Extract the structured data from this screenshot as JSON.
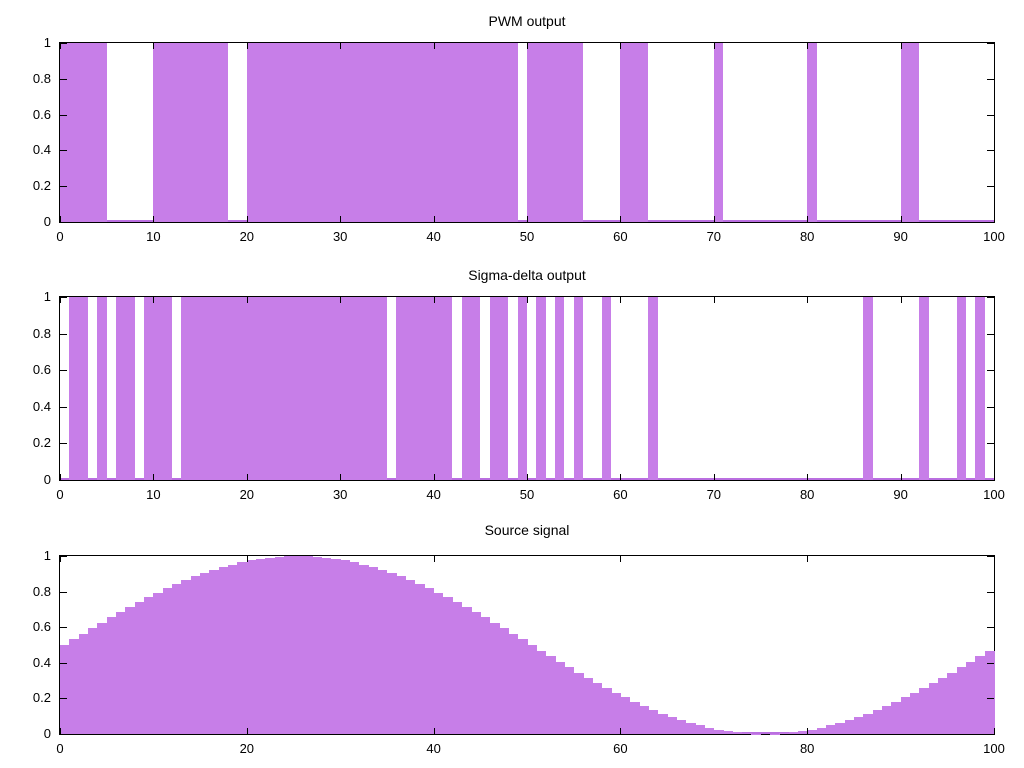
{
  "colors": {
    "bar_fill": "#C77EE8",
    "bar_baseline": "#BA6FE0",
    "axis": "#000000",
    "background": "#FFFFFF",
    "text": "#000000"
  },
  "chart_data": [
    {
      "type": "area",
      "render": "binary-boxes",
      "title": "PWM output",
      "xlim": [
        0,
        100
      ],
      "ylim": [
        0,
        1
      ],
      "grid": false,
      "legend": "none",
      "x_tick_values": [
        0,
        10,
        20,
        30,
        40,
        50,
        60,
        70,
        80,
        90,
        100
      ],
      "x_tick_labels": [
        "0",
        "10",
        "20",
        "30",
        "40",
        "50",
        "60",
        "70",
        "80",
        "90",
        "100"
      ],
      "y_tick_values": [
        0,
        0.2,
        0.4,
        0.6,
        0.8,
        1
      ],
      "y_tick_labels": [
        "0",
        "0.2",
        "0.4",
        "0.6",
        "0.8",
        "1"
      ],
      "on_intervals": [
        [
          0,
          5
        ],
        [
          10,
          18
        ],
        [
          20,
          49
        ],
        [
          50,
          56
        ],
        [
          60,
          63
        ],
        [
          70,
          71
        ],
        [
          80,
          81
        ],
        [
          90,
          92
        ]
      ]
    },
    {
      "type": "area",
      "render": "binary-boxes",
      "title": "Sigma-delta output",
      "xlim": [
        0,
        100
      ],
      "ylim": [
        0,
        1
      ],
      "grid": false,
      "legend": "none",
      "x_tick_values": [
        0,
        10,
        20,
        30,
        40,
        50,
        60,
        70,
        80,
        90,
        100
      ],
      "x_tick_labels": [
        "0",
        "10",
        "20",
        "30",
        "40",
        "50",
        "60",
        "70",
        "80",
        "90",
        "100"
      ],
      "y_tick_values": [
        0,
        0.2,
        0.4,
        0.6,
        0.8,
        1
      ],
      "y_tick_labels": [
        "0",
        "0.2",
        "0.4",
        "0.6",
        "0.8",
        "1"
      ],
      "on_intervals": [
        [
          1,
          3
        ],
        [
          4,
          5
        ],
        [
          6,
          8
        ],
        [
          9,
          12
        ],
        [
          13,
          35
        ],
        [
          36,
          42
        ],
        [
          43,
          45
        ],
        [
          46,
          48
        ],
        [
          49,
          50
        ],
        [
          51,
          52
        ],
        [
          53,
          54
        ],
        [
          55,
          56
        ],
        [
          58,
          59
        ],
        [
          63,
          64
        ],
        [
          86,
          87
        ],
        [
          92,
          93
        ],
        [
          96,
          97
        ],
        [
          98,
          99
        ]
      ]
    },
    {
      "type": "area",
      "render": "step-boxes",
      "title": "Source signal",
      "xlim": [
        0,
        100
      ],
      "ylim": [
        0,
        1
      ],
      "grid": false,
      "legend": "none",
      "box_width": 1,
      "x_tick_values": [
        0,
        20,
        40,
        60,
        80,
        100
      ],
      "x_tick_labels": [
        "0",
        "20",
        "40",
        "60",
        "80",
        "100"
      ],
      "y_tick_values": [
        0,
        0.2,
        0.4,
        0.6,
        0.8,
        1
      ],
      "y_tick_labels": [
        "0",
        "0.2",
        "0.4",
        "0.6",
        "0.8",
        "1"
      ],
      "x_start": 0,
      "values": [
        0.5,
        0.531,
        0.563,
        0.594,
        0.624,
        0.655,
        0.684,
        0.713,
        0.741,
        0.768,
        0.794,
        0.819,
        0.842,
        0.864,
        0.885,
        0.905,
        0.922,
        0.938,
        0.952,
        0.965,
        0.976,
        0.984,
        0.991,
        0.996,
        0.999,
        1.0,
        0.999,
        0.996,
        0.991,
        0.984,
        0.976,
        0.965,
        0.952,
        0.938,
        0.922,
        0.905,
        0.885,
        0.864,
        0.842,
        0.819,
        0.794,
        0.768,
        0.741,
        0.713,
        0.684,
        0.655,
        0.624,
        0.594,
        0.563,
        0.531,
        0.5,
        0.469,
        0.437,
        0.406,
        0.376,
        0.345,
        0.316,
        0.287,
        0.259,
        0.232,
        0.206,
        0.181,
        0.158,
        0.135,
        0.115,
        0.095,
        0.078,
        0.062,
        0.048,
        0.035,
        0.024,
        0.016,
        0.009,
        0.004,
        0.001,
        0.0,
        0.001,
        0.004,
        0.009,
        0.016,
        0.024,
        0.035,
        0.048,
        0.062,
        0.078,
        0.095,
        0.115,
        0.135,
        0.158,
        0.181,
        0.206,
        0.232,
        0.259,
        0.287,
        0.316,
        0.345,
        0.376,
        0.406,
        0.437,
        0.469
      ]
    }
  ]
}
